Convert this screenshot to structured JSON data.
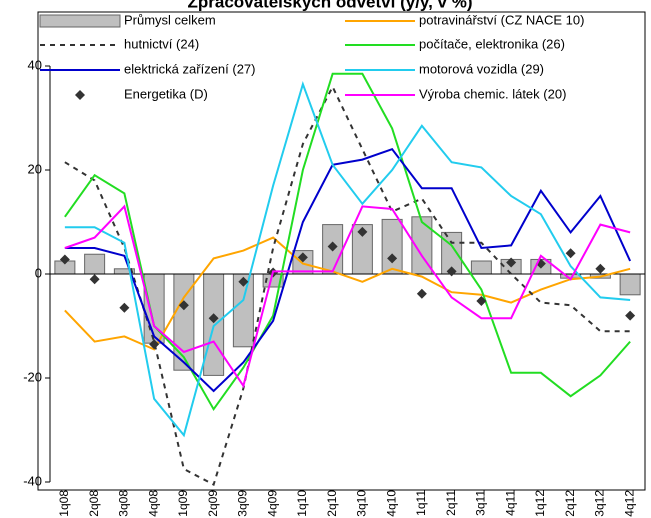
{
  "chart_data": {
    "type": "combo",
    "title": "Zpracovatelských odvětví (y/y, v %)",
    "categories": [
      "1q08",
      "2q08",
      "3q08",
      "4q08",
      "1q09",
      "2q09",
      "3q09",
      "4q09",
      "1q10",
      "2q10",
      "3q10",
      "4q10",
      "1q11",
      "2q11",
      "3q11",
      "4q11",
      "1q12",
      "2q12",
      "3q12",
      "4q12"
    ],
    "ylim": [
      -40,
      40
    ],
    "yticks": [
      -40,
      -20,
      0,
      20,
      40
    ],
    "series": [
      {
        "name": "Průmysl celkem",
        "type": "bar",
        "color": "#bfbfbf",
        "values": [
          2.5,
          3.8,
          1,
          -13.3,
          -18.5,
          -19.5,
          -14,
          -2.5,
          4.5,
          9.5,
          9.5,
          10.5,
          11,
          8,
          2.5,
          2.8,
          2.8,
          -0.8,
          -0.8,
          -4
        ]
      },
      {
        "name": "potravinářství (CZ NACE 10)",
        "type": "line",
        "color": "#ffa500",
        "values": [
          -7,
          -13,
          -12,
          -14.5,
          -4.5,
          3,
          4.5,
          7,
          2,
          0.5,
          -1.5,
          1,
          -0.5,
          -3.5,
          -4,
          -5.5,
          -3,
          -1,
          -0.5,
          1
        ]
      },
      {
        "name": "hutnictví (24)",
        "type": "line",
        "dashed": true,
        "color": "#333333",
        "values": [
          21.5,
          18,
          5,
          -13,
          -37.5,
          -40.5,
          -22,
          5,
          25,
          36,
          24,
          12,
          14.5,
          6,
          6,
          0,
          -5.5,
          -6,
          -11,
          -11
        ]
      },
      {
        "name": "počítače, elektronika (26)",
        "type": "line",
        "color": "#22dd22",
        "values": [
          11,
          19,
          15.5,
          -10,
          -16,
          -26,
          -18,
          -8,
          20,
          38.5,
          38.5,
          28,
          10,
          5.5,
          -3,
          -19,
          -19,
          -23.5,
          -19.5,
          -13
        ]
      },
      {
        "name": "elektrická zařízení (27)",
        "type": "line",
        "color": "#0000cc",
        "values": [
          5,
          5,
          3.5,
          -12,
          -17,
          -22.5,
          -17,
          -9,
          10,
          21,
          22,
          24,
          16.5,
          16.5,
          5,
          5.5,
          16,
          8,
          15,
          2.5
        ]
      },
      {
        "name": "motorová vozidla (29)",
        "type": "line",
        "color": "#22ccee",
        "values": [
          9,
          9,
          6,
          -24,
          -31,
          -10,
          -5,
          17,
          36.5,
          21,
          13.5,
          20,
          28.5,
          21.5,
          20.5,
          15,
          11.5,
          1.5,
          -4.5,
          -5
        ]
      },
      {
        "name": "Energetika (D)",
        "type": "marker",
        "color": "#333333",
        "values": [
          2.8,
          -1,
          -6.5,
          -13.5,
          -6,
          -8.5,
          -1.5,
          0.3,
          3.2,
          5.3,
          8.1,
          3,
          -3.8,
          0.5,
          -5.2,
          2.2,
          2,
          4,
          1,
          -8
        ]
      },
      {
        "name": "Výroba chemic. látek (20)",
        "type": "line",
        "color": "#ff00ff",
        "values": [
          5,
          7,
          13,
          -10,
          -15,
          -13,
          -21.5,
          0.5,
          0.5,
          0.5,
          13,
          12.5,
          3.5,
          -4.5,
          -8.5,
          -8.5,
          3.5,
          -1,
          9.5,
          8
        ]
      }
    ]
  }
}
